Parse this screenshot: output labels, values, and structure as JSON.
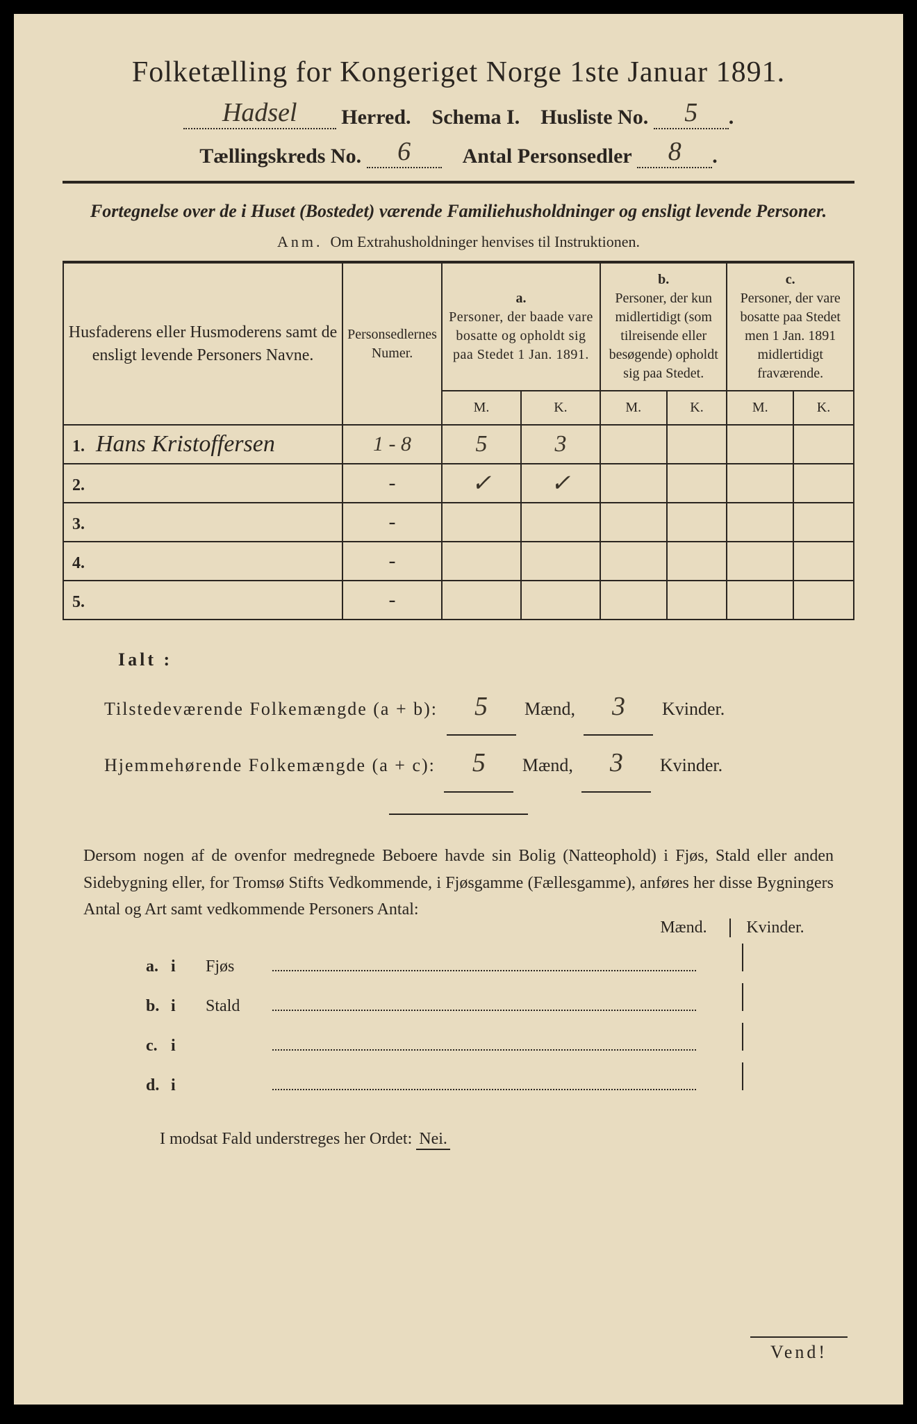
{
  "title": "Folketælling for Kongeriget Norge 1ste Januar 1891.",
  "header": {
    "herred_value": "Hadsel",
    "herred_label": "Herred.",
    "schema_label": "Schema I.",
    "husliste_label": "Husliste No.",
    "husliste_value": "5",
    "kreds_label": "Tællingskreds No.",
    "kreds_value": "6",
    "antal_label": "Antal Personsedler",
    "antal_value": "8"
  },
  "subtitle": "Fortegnelse over de i Huset (Bostedet) værende Familiehusholdninger og ensligt levende Personer.",
  "anm_prefix": "Anm.",
  "anm_text": "Om Extrahusholdninger henvises til Instruktionen.",
  "table": {
    "col_name": "Husfaderens eller Husmoderens samt de ensligt levende Personers Navne.",
    "col_num": "Personsedlernes Numer.",
    "col_a_label": "a.",
    "col_a": "Personer, der baade vare bosatte og opholdt sig paa Stedet 1 Jan. 1891.",
    "col_b_label": "b.",
    "col_b": "Personer, der kun midlertidigt (som tilreisende eller besøgende) opholdt sig paa Stedet.",
    "col_c_label": "c.",
    "col_c": "Personer, der vare bosatte paa Stedet men 1 Jan. 1891 midlertidigt fraværende.",
    "mk_m": "M.",
    "mk_k": "K.",
    "rows": [
      {
        "num": "1.",
        "name": "Hans Kristoffersen",
        "sedler": "1 - 8",
        "a_m": "5",
        "a_k": "3",
        "b_m": "",
        "b_k": "",
        "c_m": "",
        "c_k": ""
      },
      {
        "num": "2.",
        "name": "",
        "sedler": "-",
        "a_m": "✓",
        "a_k": "✓",
        "b_m": "",
        "b_k": "",
        "c_m": "",
        "c_k": ""
      },
      {
        "num": "3.",
        "name": "",
        "sedler": "-",
        "a_m": "",
        "a_k": "",
        "b_m": "",
        "b_k": "",
        "c_m": "",
        "c_k": ""
      },
      {
        "num": "4.",
        "name": "",
        "sedler": "-",
        "a_m": "",
        "a_k": "",
        "b_m": "",
        "b_k": "",
        "c_m": "",
        "c_k": ""
      },
      {
        "num": "5.",
        "name": "",
        "sedler": "-",
        "a_m": "",
        "a_k": "",
        "b_m": "",
        "b_k": "",
        "c_m": "",
        "c_k": ""
      }
    ]
  },
  "totals": {
    "ialt": "Ialt :",
    "tilstede_label": "Tilstedeværende Folkemængde (a + b):",
    "hjemme_label": "Hjemmehørende Folkemængde (a + c):",
    "tilstede_m": "5",
    "tilstede_k": "3",
    "hjemme_m": "5",
    "hjemme_k": "3",
    "maend": "Mænd,",
    "kvinder": "Kvinder."
  },
  "para": "Dersom nogen af de ovenfor medregnede Beboere havde sin Bolig (Natteophold) i Fjøs, Stald eller anden Sidebygning eller, for Tromsø Stifts Vedkommende, i Fjøsgamme (Fællesgamme), anføres her disse Bygningers Antal og Art samt vedkommende Personers Antal:",
  "buildings": {
    "maend": "Mænd.",
    "kvinder": "Kvinder.",
    "rows": [
      {
        "letter": "a.",
        "i": "i",
        "label": "Fjøs"
      },
      {
        "letter": "b.",
        "i": "i",
        "label": "Stald"
      },
      {
        "letter": "c.",
        "i": "i",
        "label": ""
      },
      {
        "letter": "d.",
        "i": "i",
        "label": ""
      }
    ]
  },
  "nei_line_prefix": "I modsat Fald understreges her Ordet:",
  "nei_word": "Nei.",
  "vend": "Vend!",
  "colors": {
    "paper": "#e8dcc0",
    "ink": "#2a2520",
    "handwriting": "#3a3328"
  }
}
